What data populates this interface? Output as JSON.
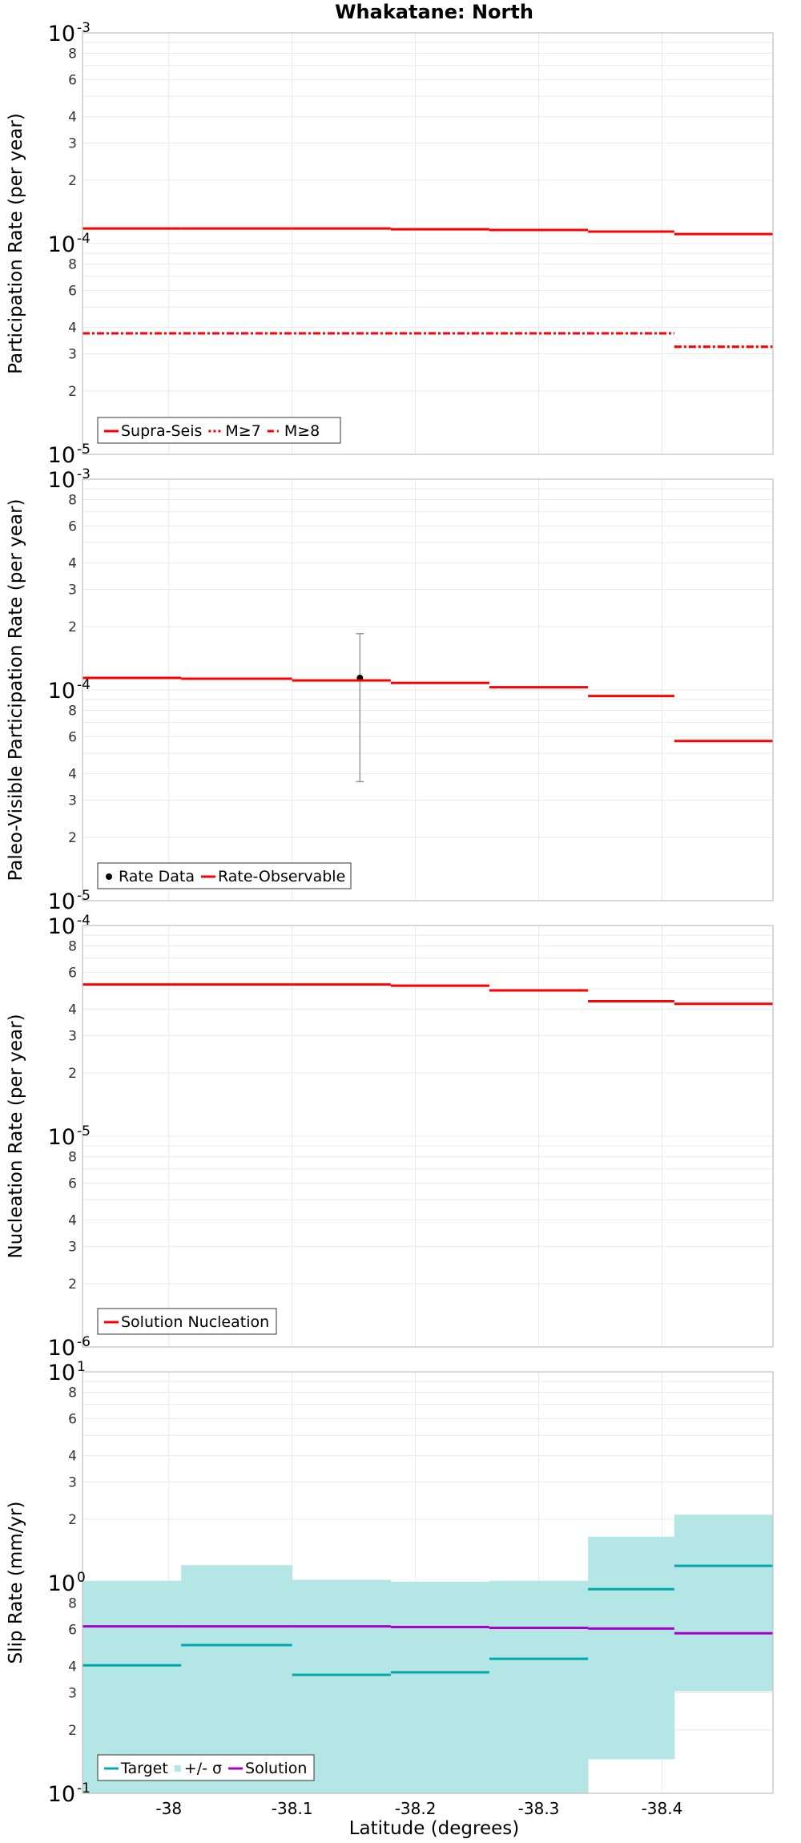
{
  "chart_data": [
    {
      "type": "line",
      "title": "Whakatane: North",
      "ylabel": "Participation Rate (per year)",
      "xlabel": "",
      "y_scale": "log",
      "ylim": [
        1e-05,
        0.001
      ],
      "xlim": [
        -37.93,
        -38.49
      ],
      "x_ticks": [
        -38,
        -38.1,
        -38.2,
        -38.3,
        -38.4
      ],
      "grid": true,
      "legend_position": "bottom-left",
      "series": [
        {
          "name": "Supra-Seis",
          "color": "#ff0000",
          "dash": "solid",
          "segments": [
            {
              "x0": -37.93,
              "x1": -38.01,
              "y": 0.000118
            },
            {
              "x0": -38.01,
              "x1": -38.1,
              "y": 0.000118
            },
            {
              "x0": -38.1,
              "x1": -38.18,
              "y": 0.000118
            },
            {
              "x0": -38.18,
              "x1": -38.26,
              "y": 0.000117
            },
            {
              "x0": -38.26,
              "x1": -38.34,
              "y": 0.000116
            },
            {
              "x0": -38.34,
              "x1": -38.41,
              "y": 0.000114
            },
            {
              "x0": -38.41,
              "x1": -38.49,
              "y": 0.000111
            }
          ]
        },
        {
          "name": "M≥7",
          "color": "#ff0000",
          "dash": "dotted",
          "segments": [
            {
              "x0": -37.93,
              "x1": -38.41,
              "y": 3.75e-05
            },
            {
              "x0": -38.41,
              "x1": -38.49,
              "y": 3.24e-05
            }
          ]
        },
        {
          "name": "M≥8",
          "color": "#ff0000",
          "dash": "dashdot",
          "segments": [
            {
              "x0": -37.93,
              "x1": -38.41,
              "y": 3.75e-05
            },
            {
              "x0": -38.41,
              "x1": -38.49,
              "y": 3.24e-05
            }
          ]
        }
      ]
    },
    {
      "type": "line",
      "title": "",
      "ylabel": "Paleo-Visible Participation Rate (per year)",
      "xlabel": "",
      "y_scale": "log",
      "ylim": [
        1e-05,
        0.001
      ],
      "xlim": [
        -37.93,
        -38.49
      ],
      "x_ticks": [
        -38,
        -38.1,
        -38.2,
        -38.3,
        -38.4
      ],
      "grid": true,
      "legend_position": "bottom-left",
      "series": [
        {
          "name": "Rate Data",
          "color": "#000000",
          "kind": "points",
          "points": [
            {
              "x": -38.155,
              "y": 0.000114,
              "ylow": 3.67e-05,
              "yhigh": 0.000185
            }
          ]
        },
        {
          "name": "Rate-Observable",
          "color": "#ff0000",
          "dash": "solid",
          "segments": [
            {
              "x0": -37.93,
              "x1": -38.01,
              "y": 0.000114
            },
            {
              "x0": -38.01,
              "x1": -38.1,
              "y": 0.000113
            },
            {
              "x0": -38.1,
              "x1": -38.18,
              "y": 0.000111
            },
            {
              "x0": -38.18,
              "x1": -38.26,
              "y": 0.000108
            },
            {
              "x0": -38.26,
              "x1": -38.34,
              "y": 0.000103
            },
            {
              "x0": -38.34,
              "x1": -38.41,
              "y": 9.35e-05
            },
            {
              "x0": -38.41,
              "x1": -38.49,
              "y": 5.72e-05
            }
          ]
        }
      ]
    },
    {
      "type": "line",
      "title": "",
      "ylabel": "Nucleation Rate (per year)",
      "xlabel": "",
      "y_scale": "log",
      "ylim": [
        1e-06,
        0.0001
      ],
      "xlim": [
        -37.93,
        -38.49
      ],
      "x_ticks": [
        -38,
        -38.1,
        -38.2,
        -38.3,
        -38.4
      ],
      "grid": true,
      "legend_position": "bottom-left",
      "series": [
        {
          "name": "Solution Nucleation",
          "color": "#ff0000",
          "dash": "solid",
          "segments": [
            {
              "x0": -37.93,
              "x1": -38.01,
              "y": 5.25e-05
            },
            {
              "x0": -38.01,
              "x1": -38.1,
              "y": 5.25e-05
            },
            {
              "x0": -38.1,
              "x1": -38.18,
              "y": 5.25e-05
            },
            {
              "x0": -38.18,
              "x1": -38.26,
              "y": 5.18e-05
            },
            {
              "x0": -38.26,
              "x1": -38.34,
              "y": 4.92e-05
            },
            {
              "x0": -38.34,
              "x1": -38.41,
              "y": 4.37e-05
            },
            {
              "x0": -38.41,
              "x1": -38.49,
              "y": 4.25e-05
            }
          ]
        }
      ]
    },
    {
      "type": "line",
      "title": "",
      "ylabel": "Slip Rate (mm/yr)",
      "xlabel": "Latitude (degrees)",
      "y_scale": "log",
      "ylim": [
        0.1,
        10
      ],
      "xlim": [
        -37.93,
        -38.49
      ],
      "x_ticks": [
        -38,
        -38.1,
        -38.2,
        -38.3,
        -38.4
      ],
      "grid": true,
      "legend_position": "bottom-left",
      "series": [
        {
          "name": "+/- σ",
          "color": "#b4e6e6",
          "kind": "band",
          "segments": [
            {
              "x0": -37.93,
              "x1": -38.01,
              "low": 0.1,
              "high": 1.02
            },
            {
              "x0": -38.01,
              "x1": -38.1,
              "low": 0.1,
              "high": 1.21
            },
            {
              "x0": -38.1,
              "x1": -38.18,
              "low": 0.1,
              "high": 1.03
            },
            {
              "x0": -38.18,
              "x1": -38.26,
              "low": 0.1,
              "high": 1.01
            },
            {
              "x0": -38.26,
              "x1": -38.34,
              "low": 0.1,
              "high": 1.02
            },
            {
              "x0": -38.34,
              "x1": -38.41,
              "low": 0.145,
              "high": 1.65
            },
            {
              "x0": -38.41,
              "x1": -38.49,
              "low": 0.305,
              "high": 2.1
            }
          ]
        },
        {
          "name": "Target",
          "color": "#00aaaa",
          "dash": "solid",
          "segments": [
            {
              "x0": -37.93,
              "x1": -38.01,
              "y": 0.405
            },
            {
              "x0": -38.01,
              "x1": -38.1,
              "y": 0.505
            },
            {
              "x0": -38.1,
              "x1": -38.18,
              "y": 0.365
            },
            {
              "x0": -38.18,
              "x1": -38.26,
              "y": 0.375
            },
            {
              "x0": -38.26,
              "x1": -38.34,
              "y": 0.435
            },
            {
              "x0": -38.34,
              "x1": -38.41,
              "y": 0.93
            },
            {
              "x0": -38.41,
              "x1": -38.49,
              "y": 1.2
            }
          ]
        },
        {
          "name": "Solution",
          "color": "#aa00cc",
          "dash": "solid",
          "segments": [
            {
              "x0": -37.93,
              "x1": -38.01,
              "y": 0.62
            },
            {
              "x0": -38.01,
              "x1": -38.1,
              "y": 0.62
            },
            {
              "x0": -38.1,
              "x1": -38.18,
              "y": 0.62
            },
            {
              "x0": -38.18,
              "x1": -38.26,
              "y": 0.615
            },
            {
              "x0": -38.26,
              "x1": -38.34,
              "y": 0.61
            },
            {
              "x0": -38.34,
              "x1": -38.41,
              "y": 0.605
            },
            {
              "x0": -38.41,
              "x1": -38.49,
              "y": 0.575
            }
          ]
        }
      ]
    }
  ]
}
